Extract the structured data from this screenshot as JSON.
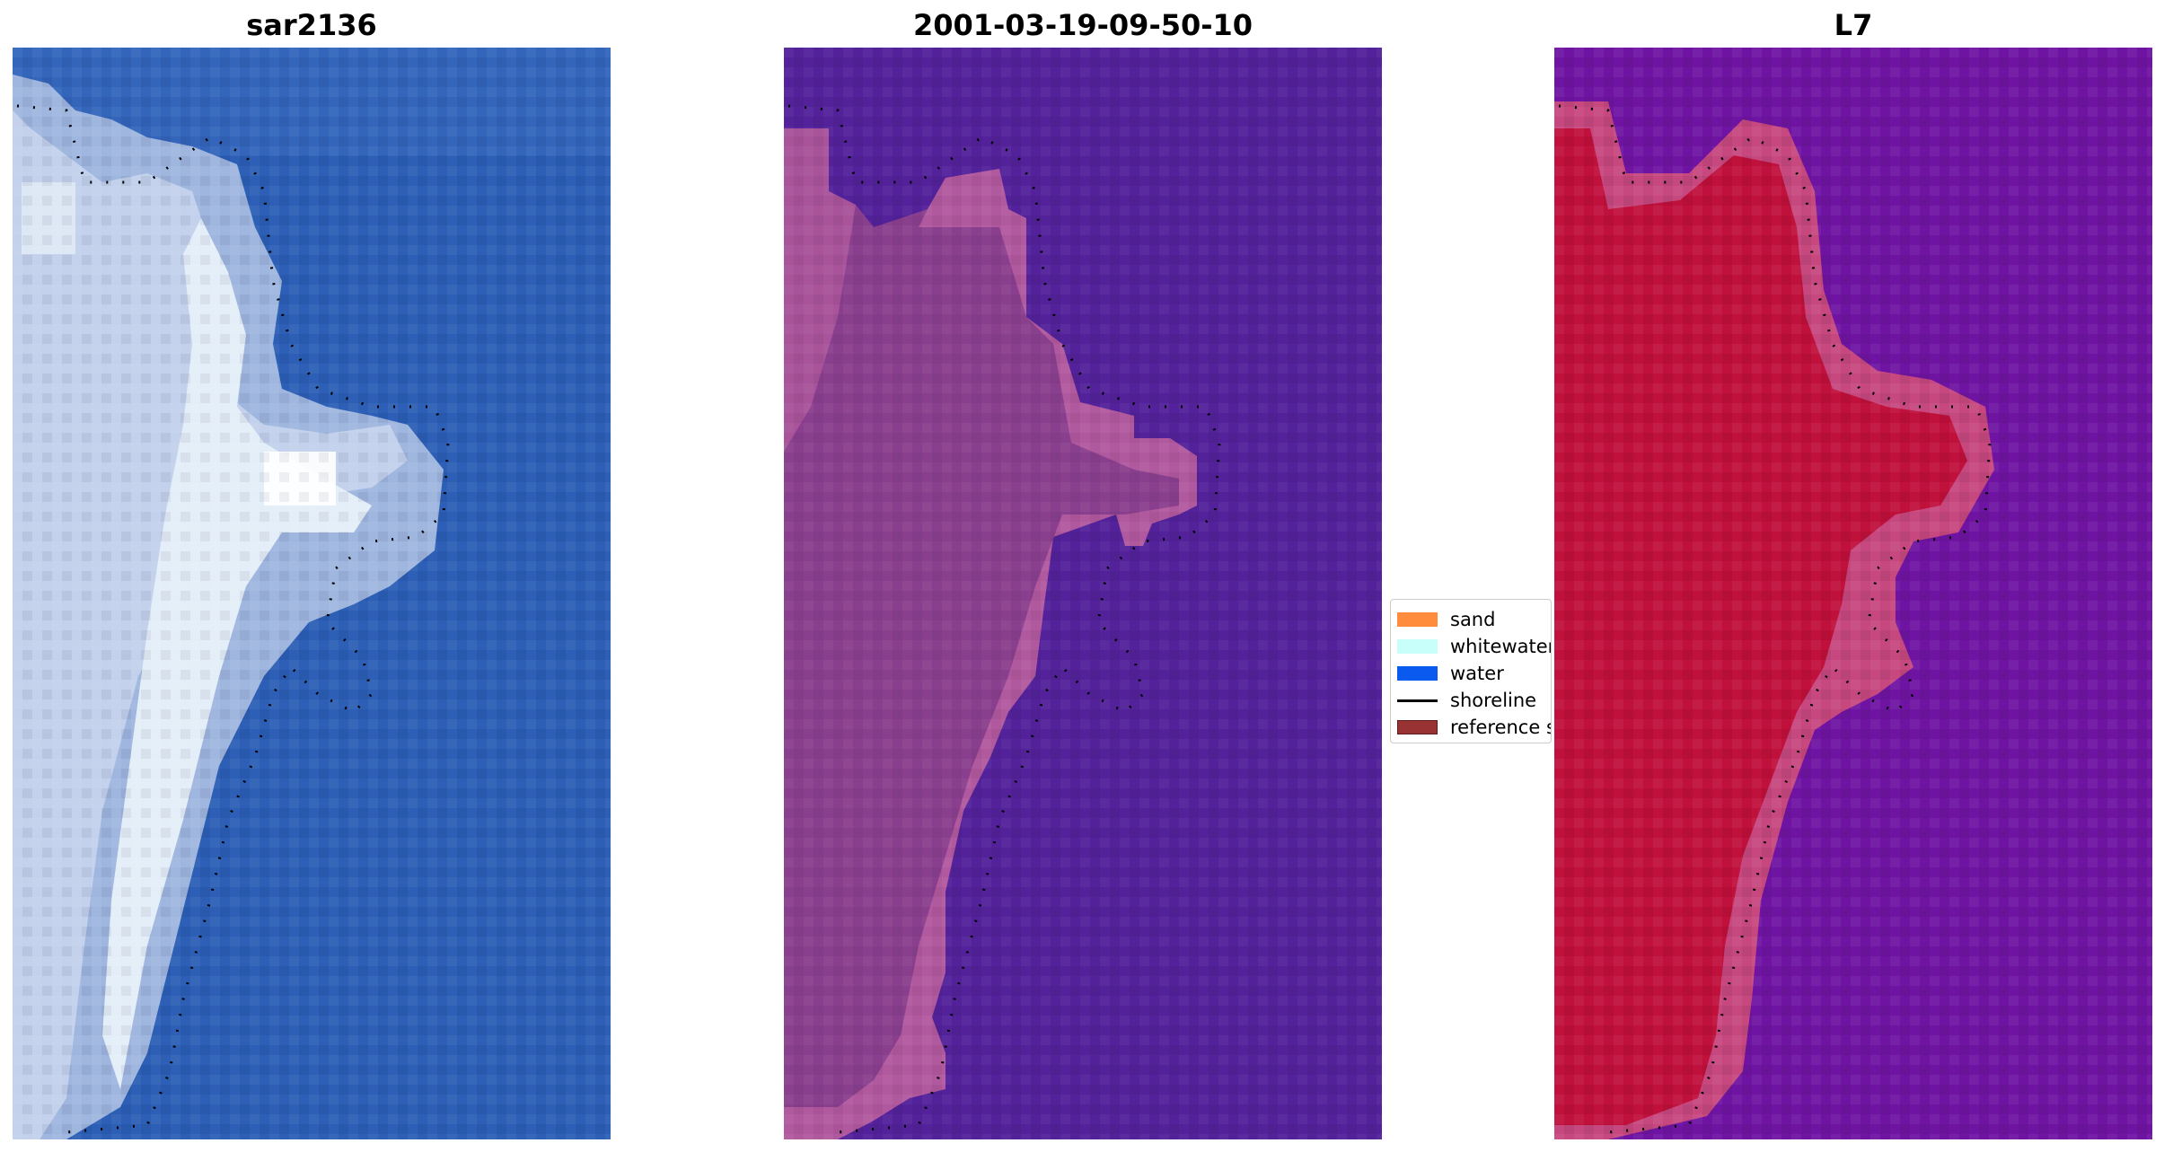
{
  "panels": [
    {
      "title": "sar2136",
      "image": "rgb-satellite-image"
    },
    {
      "title": "2001-03-19-09-50-10",
      "image": "classified-image"
    },
    {
      "title": "L7",
      "image": "mndwi-image"
    }
  ],
  "legend": {
    "items": [
      {
        "label": "sand",
        "color": "#ff8c3c"
      },
      {
        "label": "whitewater",
        "color": "#c8fffa"
      },
      {
        "label": "water",
        "color": "#0a5af0"
      },
      {
        "label": "shoreline",
        "color": "#000000"
      },
      {
        "label": "reference s",
        "color": "#993333"
      }
    ]
  },
  "colors": {
    "rgb_water": "#2c5fb5",
    "rgb_land": "#9fb6de",
    "rgb_surf": "#e4eef8",
    "class_water": "#53229a",
    "class_land": "#8a3f8e",
    "class_land_light": "#b55ca0",
    "mndwi_water": "#6a12a0",
    "mndwi_land": "#c0103c",
    "mndwi_edge": "#c6487e"
  }
}
